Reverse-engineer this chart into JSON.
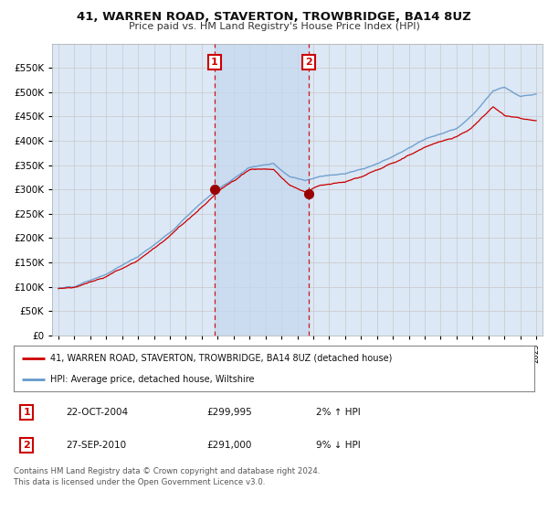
{
  "title": "41, WARREN ROAD, STAVERTON, TROWBRIDGE, BA14 8UZ",
  "subtitle": "Price paid vs. HM Land Registry's House Price Index (HPI)",
  "ytick_vals": [
    0,
    50000,
    100000,
    150000,
    200000,
    250000,
    300000,
    350000,
    400000,
    450000,
    500000,
    550000
  ],
  "ylim": [
    0,
    600000
  ],
  "sale1_date": 2004.81,
  "sale1_price": 299995,
  "sale2_date": 2010.74,
  "sale2_price": 291000,
  "legend_line1": "41, WARREN ROAD, STAVERTON, TROWBRIDGE, BA14 8UZ (detached house)",
  "legend_line2": "HPI: Average price, detached house, Wiltshire",
  "table_row1": [
    "1",
    "22-OCT-2004",
    "£299,995",
    "2% ↑ HPI"
  ],
  "table_row2": [
    "2",
    "27-SEP-2010",
    "£291,000",
    "9% ↓ HPI"
  ],
  "footnote": "Contains HM Land Registry data © Crown copyright and database right 2024.\nThis data is licensed under the Open Government Licence v3.0.",
  "line_color_red": "#cc0000",
  "line_color_blue": "#6699cc",
  "bg_color": "#dce8f5",
  "shade_color": "#c5d8ee",
  "grid_color": "#e8e8e8",
  "sale_marker_color": "#990000",
  "dashed_line_color": "#cc0000",
  "xlim_start": 1994.6,
  "xlim_end": 2025.4,
  "xtick_start": 1995,
  "xtick_end": 2025,
  "xtick_step": 1,
  "label_box_color": "#cc0000"
}
